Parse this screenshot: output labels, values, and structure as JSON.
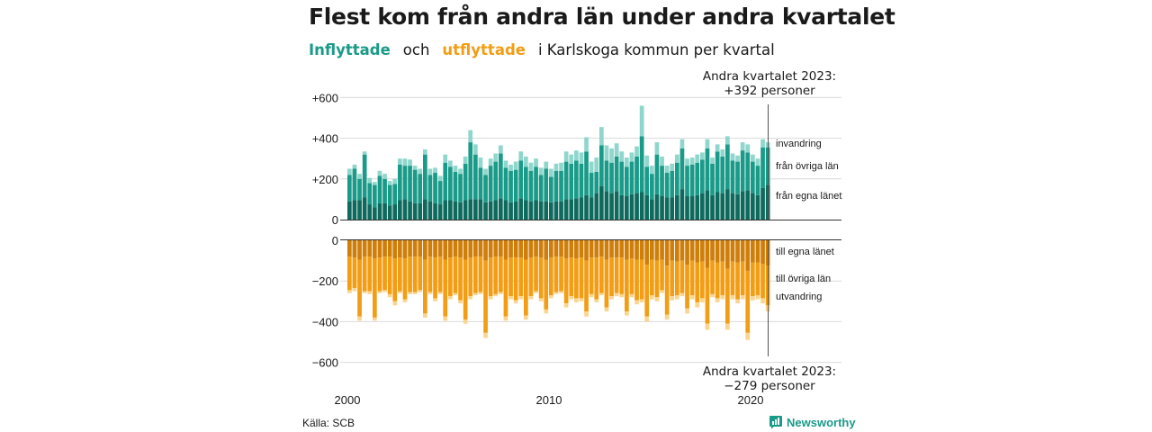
{
  "header": {
    "title": "Flest kom från andra län under andra kvartalet",
    "subtitle_in": "Inflyttade",
    "subtitle_och": "och",
    "subtitle_out": "utflyttade",
    "subtitle_rest": "i Karlskoga  kommun  per  kvartal"
  },
  "footer": {
    "source": "Källa: SCB",
    "brand": "Newsworthy"
  },
  "colors": {
    "in_egna": "#0f6a5e",
    "in_ovriga": "#1a9a88",
    "in_invandring": "#8fd6cc",
    "out_egna": "#d07e0a",
    "out_ovriga": "#f29d14",
    "out_utvandring": "#fbd58f",
    "grid": "#d9d9d9",
    "axis": "#333333"
  },
  "chart_data": {
    "type": "bar",
    "stacked": true,
    "x_start": "2000 Q1",
    "x_ticks": [
      "2000",
      "2010",
      "2020"
    ],
    "y_ticks_top": [
      "+600",
      "+400",
      "+200",
      "0"
    ],
    "y_ticks_bottom": [
      "0",
      "−200",
      "−400",
      "−600"
    ],
    "ylim": [
      -600,
      600
    ],
    "annotation_top": [
      "Andra kvartalet 2023:",
      "+392 personer"
    ],
    "annotation_bottom": [
      "Andra kvartalet 2023:",
      "−279 personer"
    ],
    "series_labels_in": [
      "invandring",
      "från övriga län",
      "från egna länet"
    ],
    "series_labels_out": [
      "till egna länet",
      "till övriga län",
      "utvandring"
    ],
    "inflyttade_total": [
      250,
      270,
      225,
      335,
      205,
      185,
      240,
      225,
      190,
      200,
      300,
      300,
      295,
      265,
      250,
      345,
      250,
      255,
      215,
      320,
      290,
      265,
      250,
      310,
      440,
      370,
      305,
      250,
      300,
      325,
      365,
      290,
      270,
      285,
      335,
      310,
      280,
      300,
      255,
      285,
      250,
      275,
      280,
      335,
      320,
      340,
      330,
      405,
      285,
      305,
      455,
      365,
      350,
      375,
      335,
      305,
      330,
      360,
      560,
      315,
      265,
      380,
      310,
      265,
      275,
      320,
      395,
      300,
      305,
      320,
      330,
      395,
      305,
      370,
      345,
      410,
      325,
      315,
      380,
      370,
      320,
      300,
      395,
      380
    ],
    "inflyttade_invandring": [
      30,
      20,
      25,
      15,
      25,
      15,
      25,
      25,
      20,
      25,
      30,
      35,
      30,
      20,
      25,
      25,
      30,
      25,
      25,
      40,
      30,
      30,
      25,
      35,
      60,
      50,
      50,
      30,
      35,
      40,
      40,
      35,
      30,
      40,
      45,
      50,
      40,
      40,
      35,
      35,
      40,
      35,
      40,
      50,
      45,
      50,
      55,
      70,
      55,
      70,
      90,
      75,
      70,
      65,
      50,
      45,
      45,
      50,
      150,
      55,
      40,
      60,
      45,
      35,
      35,
      40,
      45,
      35,
      35,
      40,
      35,
      45,
      30,
      35,
      35,
      40,
      35,
      30,
      40,
      40,
      35,
      35,
      40,
      25
    ],
    "inflyttade_egna": [
      90,
      95,
      95,
      110,
      75,
      60,
      80,
      80,
      70,
      75,
      95,
      100,
      90,
      80,
      80,
      100,
      90,
      80,
      75,
      95,
      95,
      90,
      85,
      95,
      100,
      100,
      100,
      85,
      90,
      95,
      105,
      95,
      85,
      90,
      105,
      95,
      90,
      95,
      90,
      90,
      85,
      90,
      90,
      100,
      100,
      105,
      110,
      120,
      110,
      130,
      165,
      140,
      130,
      140,
      120,
      115,
      125,
      130,
      135,
      120,
      100,
      125,
      115,
      110,
      110,
      120,
      150,
      115,
      115,
      120,
      130,
      145,
      120,
      135,
      130,
      150,
      130,
      125,
      140,
      145,
      130,
      120,
      155,
      170
    ],
    "utflyttade_total": [
      -260,
      -250,
      -395,
      -260,
      -265,
      -395,
      -260,
      -255,
      -280,
      -320,
      -260,
      -305,
      -265,
      -265,
      -255,
      -380,
      -265,
      -300,
      -265,
      -395,
      -290,
      -270,
      -310,
      -410,
      -290,
      -270,
      -265,
      -480,
      -290,
      -275,
      -265,
      -395,
      -290,
      -310,
      -290,
      -390,
      -290,
      -260,
      -300,
      -360,
      -285,
      -265,
      -260,
      -330,
      -290,
      -305,
      -300,
      -375,
      -280,
      -305,
      -270,
      -350,
      -290,
      -275,
      -280,
      -370,
      -280,
      -315,
      -305,
      -400,
      -290,
      -300,
      -260,
      -390,
      -295,
      -290,
      -275,
      -360,
      -290,
      -330,
      -305,
      -440,
      -280,
      -305,
      -290,
      -440,
      -290,
      -310,
      -290,
      -490,
      -295,
      -290,
      -310,
      -350
    ],
    "utflyttade_egna": [
      -80,
      -85,
      -95,
      -80,
      -80,
      -90,
      -85,
      -80,
      -80,
      -90,
      -85,
      -90,
      -80,
      -80,
      -80,
      -95,
      -80,
      -85,
      -80,
      -95,
      -85,
      -80,
      -85,
      -95,
      -85,
      -80,
      -80,
      -100,
      -85,
      -80,
      -80,
      -95,
      -85,
      -85,
      -85,
      -95,
      -85,
      -80,
      -85,
      -95,
      -85,
      -80,
      -80,
      -90,
      -85,
      -90,
      -85,
      -100,
      -85,
      -85,
      -80,
      -95,
      -85,
      -85,
      -85,
      -95,
      -90,
      -95,
      -95,
      -120,
      -95,
      -100,
      -95,
      -125,
      -100,
      -105,
      -100,
      -120,
      -100,
      -110,
      -105,
      -135,
      -100,
      -110,
      -105,
      -140,
      -105,
      -110,
      -105,
      -150,
      -110,
      -110,
      -115,
      -125
    ],
    "utflyttade_utvandring": [
      -15,
      -15,
      -20,
      -10,
      -15,
      -15,
      -10,
      -10,
      -15,
      -20,
      -10,
      -15,
      -10,
      -10,
      -10,
      -20,
      -10,
      -15,
      -10,
      -20,
      -15,
      -10,
      -15,
      -20,
      -15,
      -10,
      -10,
      -25,
      -15,
      -10,
      -10,
      -20,
      -15,
      -15,
      -15,
      -20,
      -15,
      -10,
      -15,
      -20,
      -15,
      -10,
      -10,
      -20,
      -15,
      -20,
      -15,
      -25,
      -15,
      -15,
      -10,
      -20,
      -15,
      -15,
      -15,
      -20,
      -15,
      -20,
      -15,
      -25,
      -20,
      -20,
      -15,
      -25,
      -20,
      -20,
      -15,
      -25,
      -20,
      -25,
      -20,
      -30,
      -15,
      -20,
      -20,
      -30,
      -20,
      -20,
      -20,
      -35,
      -20,
      -20,
      -25,
      -30
    ]
  }
}
